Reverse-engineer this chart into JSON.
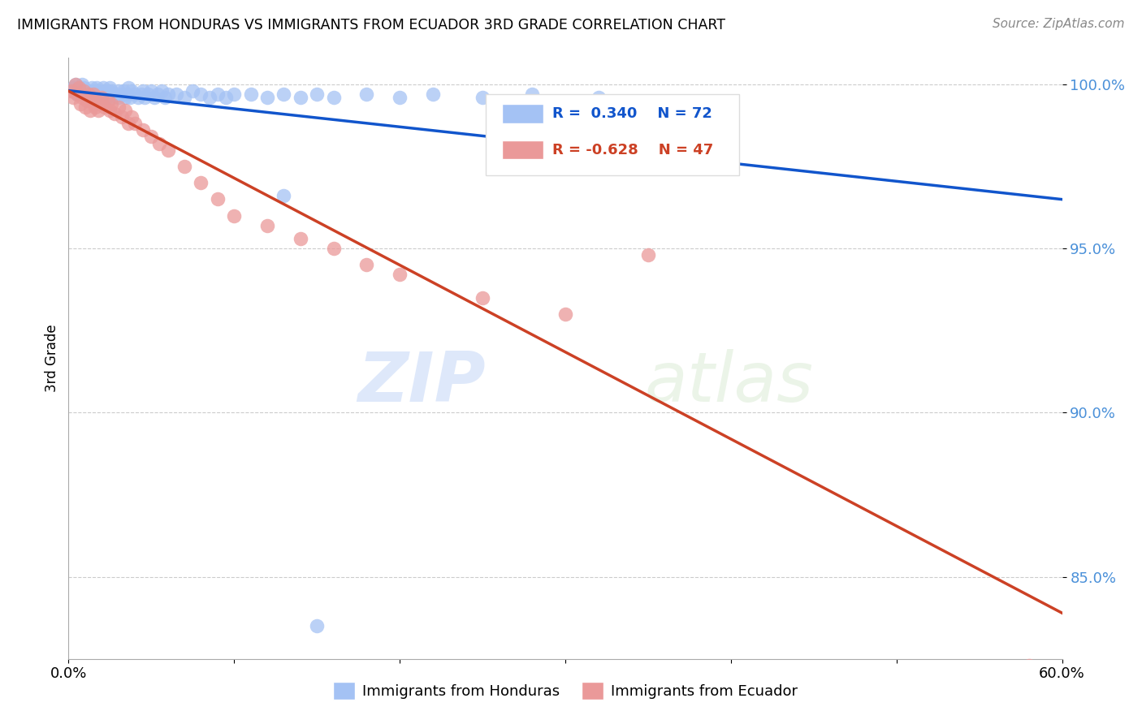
{
  "title": "IMMIGRANTS FROM HONDURAS VS IMMIGRANTS FROM ECUADOR 3RD GRADE CORRELATION CHART",
  "source": "Source: ZipAtlas.com",
  "xlabel_label": "Immigrants from Honduras",
  "xlabel_label2": "Immigrants from Ecuador",
  "ylabel": "3rd Grade",
  "xlim": [
    0.0,
    0.6
  ],
  "ylim": [
    0.825,
    1.008
  ],
  "yticks": [
    0.85,
    0.9,
    0.95,
    1.0
  ],
  "ytick_labels": [
    "85.0%",
    "90.0%",
    "95.0%",
    "100.0%"
  ],
  "R_blue": 0.34,
  "N_blue": 72,
  "R_pink": -0.628,
  "N_pink": 47,
  "blue_color": "#a4c2f4",
  "pink_color": "#ea9999",
  "blue_line_color": "#1155cc",
  "pink_line_color": "#cc4125",
  "watermark_zip": "ZIP",
  "watermark_atlas": "atlas",
  "honduras_x": [
    0.002,
    0.003,
    0.004,
    0.005,
    0.006,
    0.007,
    0.008,
    0.009,
    0.01,
    0.01,
    0.012,
    0.013,
    0.014,
    0.015,
    0.015,
    0.016,
    0.017,
    0.018,
    0.019,
    0.02,
    0.021,
    0.022,
    0.023,
    0.024,
    0.025,
    0.025,
    0.026,
    0.027,
    0.028,
    0.03,
    0.03,
    0.032,
    0.033,
    0.034,
    0.035,
    0.036,
    0.037,
    0.038,
    0.04,
    0.042,
    0.044,
    0.045,
    0.046,
    0.048,
    0.05,
    0.052,
    0.054,
    0.056,
    0.058,
    0.06,
    0.065,
    0.07,
    0.075,
    0.08,
    0.085,
    0.09,
    0.095,
    0.1,
    0.11,
    0.12,
    0.13,
    0.14,
    0.15,
    0.16,
    0.18,
    0.2,
    0.22,
    0.25,
    0.28,
    0.32,
    0.13,
    0.15
  ],
  "honduras_y": [
    0.998,
    0.999,
    1.0,
    0.997,
    0.999,
    0.998,
    1.0,
    0.999,
    0.997,
    0.998,
    0.998,
    0.997,
    0.999,
    0.998,
    0.996,
    0.997,
    0.999,
    0.998,
    0.996,
    0.997,
    0.999,
    0.998,
    0.996,
    0.998,
    0.997,
    0.999,
    0.998,
    0.996,
    0.997,
    0.998,
    0.996,
    0.997,
    0.998,
    0.996,
    0.997,
    0.999,
    0.996,
    0.998,
    0.997,
    0.996,
    0.997,
    0.998,
    0.996,
    0.997,
    0.998,
    0.996,
    0.997,
    0.998,
    0.996,
    0.997,
    0.997,
    0.996,
    0.998,
    0.997,
    0.996,
    0.997,
    0.996,
    0.997,
    0.997,
    0.996,
    0.997,
    0.996,
    0.997,
    0.996,
    0.997,
    0.996,
    0.997,
    0.996,
    0.997,
    0.996,
    0.966,
    0.835
  ],
  "ecuador_x": [
    0.002,
    0.003,
    0.004,
    0.005,
    0.006,
    0.007,
    0.008,
    0.009,
    0.01,
    0.011,
    0.012,
    0.013,
    0.014,
    0.015,
    0.016,
    0.017,
    0.018,
    0.019,
    0.02,
    0.022,
    0.024,
    0.025,
    0.026,
    0.028,
    0.03,
    0.032,
    0.034,
    0.036,
    0.038,
    0.04,
    0.045,
    0.05,
    0.055,
    0.06,
    0.07,
    0.08,
    0.09,
    0.1,
    0.12,
    0.14,
    0.16,
    0.18,
    0.2,
    0.25,
    0.3,
    0.35,
    0.58
  ],
  "ecuador_y": [
    0.998,
    0.996,
    1.0,
    0.997,
    0.999,
    0.994,
    0.996,
    0.998,
    0.993,
    0.995,
    0.997,
    0.992,
    0.995,
    0.997,
    0.993,
    0.995,
    0.992,
    0.994,
    0.996,
    0.993,
    0.995,
    0.992,
    0.994,
    0.991,
    0.993,
    0.99,
    0.992,
    0.988,
    0.99,
    0.988,
    0.986,
    0.984,
    0.982,
    0.98,
    0.975,
    0.97,
    0.965,
    0.96,
    0.957,
    0.953,
    0.95,
    0.945,
    0.942,
    0.935,
    0.93,
    0.948,
    0.823
  ]
}
